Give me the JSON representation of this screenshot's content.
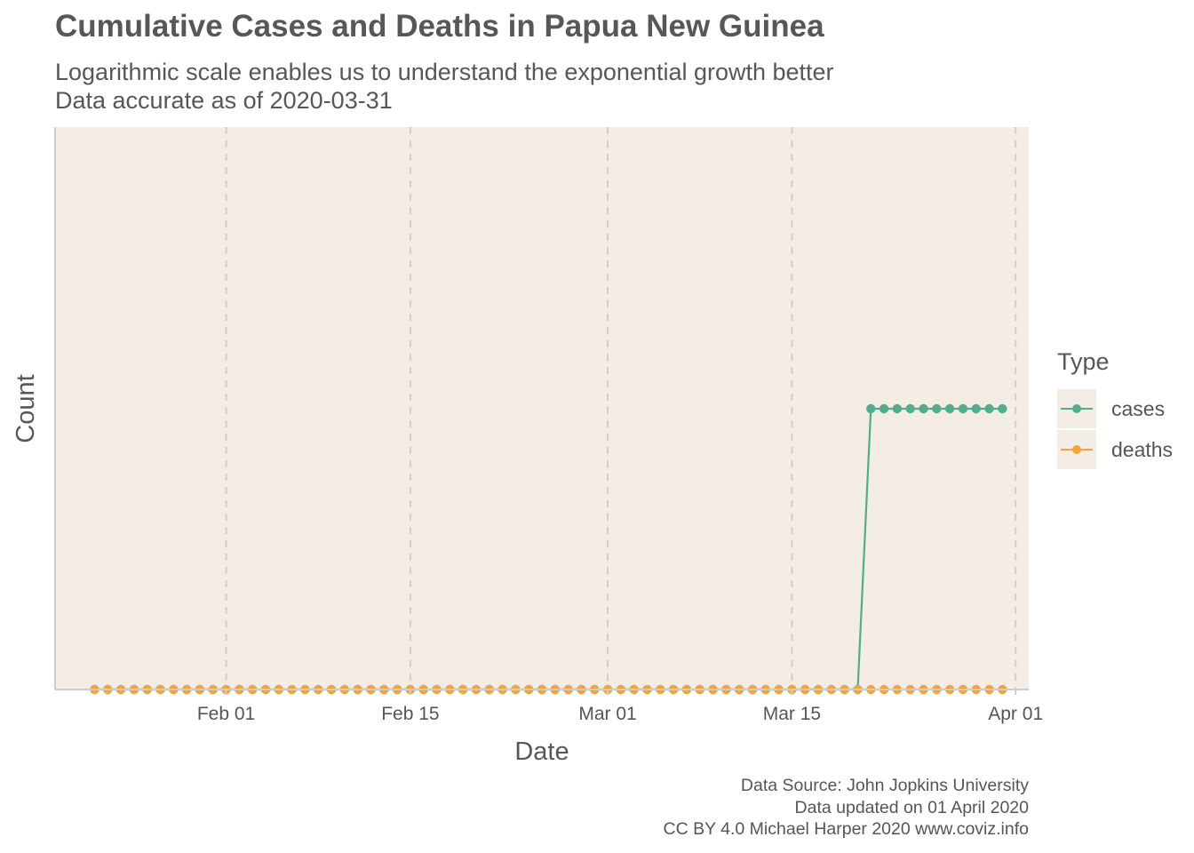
{
  "title": "Cumulative Cases and Deaths in Papua New Guinea",
  "subtitle_line1": "Logarithmic scale enables us to understand the exponential growth better",
  "subtitle_line2": "Data accurate as of 2020-03-31",
  "caption_line1": "Data Source: John Jopkins University",
  "caption_line2": "Data updated on 01 April 2020",
  "caption_line3": "CC BY 4.0 Michael Harper 2020 www.coviz.info",
  "legend": {
    "title": "Type",
    "items": [
      {
        "label": "cases",
        "color": "#52ad8c"
      },
      {
        "label": "deaths",
        "color": "#f6a43a"
      }
    ]
  },
  "colors": {
    "panel_background": "#f3ede6",
    "gridline": "#cfcfcf",
    "axis_line": "#cccccc"
  },
  "chart_data": {
    "type": "line",
    "title": "Cumulative Cases and Deaths in Papua New Guinea",
    "xlabel": "Date",
    "ylabel": "Count",
    "y_scale": "log",
    "ylim": [
      0,
      1
    ],
    "x_range": [
      "2020-01-19",
      "2020-04-02"
    ],
    "x_ticks": [
      {
        "date": "2020-02-01",
        "label": "Feb 01"
      },
      {
        "date": "2020-02-15",
        "label": "Feb 15"
      },
      {
        "date": "2020-03-01",
        "label": "Mar 01"
      },
      {
        "date": "2020-03-15",
        "label": "Mar 15"
      },
      {
        "date": "2020-04-01",
        "label": "Apr 01"
      }
    ],
    "grid": "vertical dashed",
    "legend_position": "right",
    "date_start": "2020-01-22",
    "date_end": "2020-03-31",
    "series": [
      {
        "name": "cases",
        "color": "#52ad8c",
        "first_date": "2020-01-22",
        "last_date": "2020-03-31",
        "change_date": "2020-03-21",
        "value_before": 0,
        "value_from_change": 1
      },
      {
        "name": "deaths",
        "color": "#f6a43a",
        "first_date": "2020-01-22",
        "last_date": "2020-03-31",
        "value": 0
      }
    ]
  }
}
